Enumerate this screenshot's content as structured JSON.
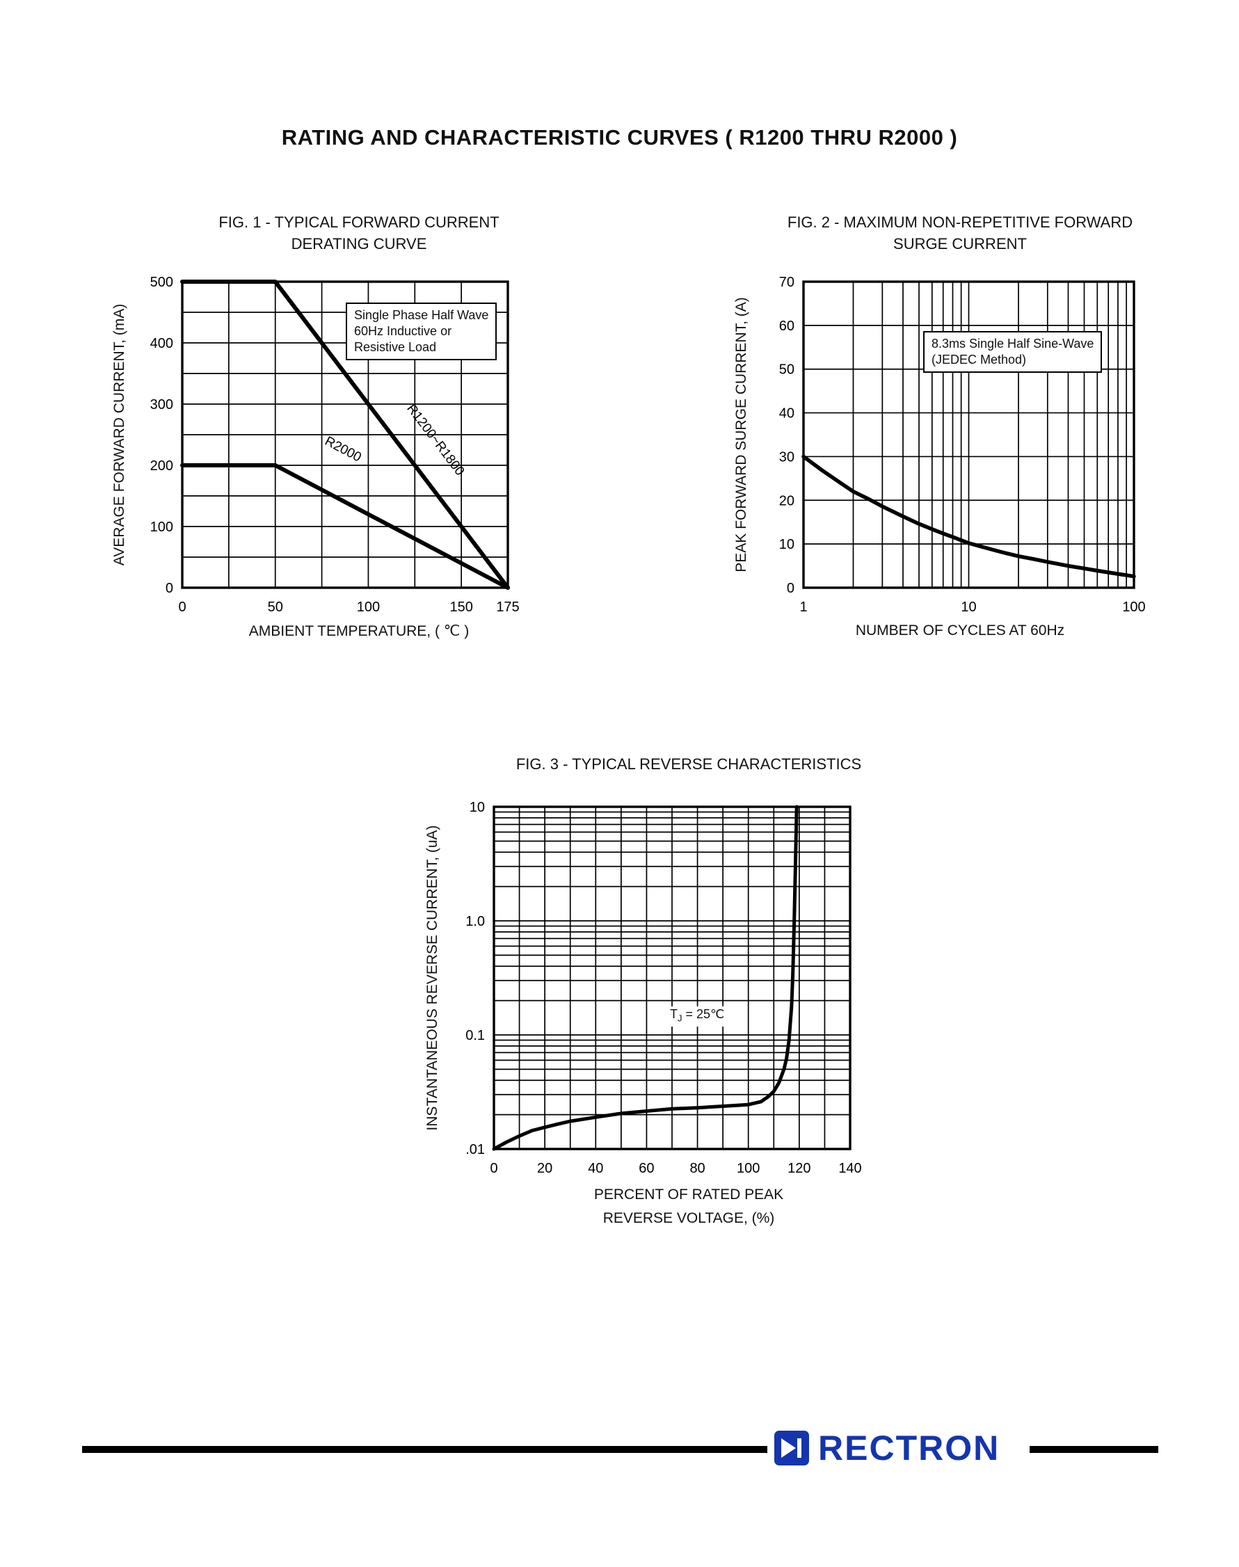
{
  "page": {
    "title": "RATING AND CHARACTERISTIC CURVES ( R1200 THRU R2000 )"
  },
  "footer": {
    "brand": "RECTRON",
    "brand_color": "#1535ad"
  },
  "chart_data": [
    {
      "id": "fig1",
      "type": "line",
      "title": "FIG. 1 - TYPICAL FORWARD CURRENT",
      "subtitle": "DERATING CURVE",
      "xlabel": "AMBIENT TEMPERATURE, ( ℃ )",
      "ylabel": "AVERAGE FORWARD CURRENT, (mA)",
      "xscale": "linear",
      "yscale": "linear",
      "xlim": [
        0,
        175
      ],
      "ylim": [
        0,
        500
      ],
      "xgrid_step": 25,
      "ygrid_step": 50,
      "xticks": [
        {
          "v": 0,
          "l": "0"
        },
        {
          "v": 50,
          "l": "50"
        },
        {
          "v": 100,
          "l": "100"
        },
        {
          "v": 150,
          "l": "150"
        },
        {
          "v": 175,
          "l": "175"
        }
      ],
      "yticks": [
        {
          "v": 0,
          "l": "0"
        },
        {
          "v": 100,
          "l": "100"
        },
        {
          "v": 200,
          "l": "200"
        },
        {
          "v": 300,
          "l": "300"
        },
        {
          "v": 400,
          "l": "400"
        },
        {
          "v": 500,
          "l": "500"
        }
      ],
      "annotation": {
        "boxed": true,
        "lines": [
          "Single Phase Half Wave",
          "60Hz Inductive or",
          "Resistive Load"
        ]
      },
      "series": [
        {
          "name": "R1200~R1800",
          "points": [
            [
              0,
              500
            ],
            [
              50,
              500
            ],
            [
              175,
              0
            ]
          ]
        },
        {
          "name": "R2000",
          "points": [
            [
              0,
              200
            ],
            [
              50,
              200
            ],
            [
              175,
              0
            ]
          ]
        }
      ]
    },
    {
      "id": "fig2",
      "type": "line",
      "title": "FIG. 2 - MAXIMUM NON-REPETITIVE FORWARD",
      "subtitle": "SURGE CURRENT",
      "xlabel": "NUMBER OF CYCLES AT 60Hz",
      "ylabel": "PEAK FORWARD SURGE CURRENT, (A)",
      "xscale": "log",
      "yscale": "linear",
      "xlim": [
        1,
        100
      ],
      "ylim": [
        0,
        70
      ],
      "ygrid_step": 10,
      "xticks": [
        {
          "v": 1,
          "l": "1"
        },
        {
          "v": 10,
          "l": "10"
        },
        {
          "v": 100,
          "l": "100"
        }
      ],
      "yticks": [
        {
          "v": 0,
          "l": "0"
        },
        {
          "v": 10,
          "l": "10"
        },
        {
          "v": 20,
          "l": "20"
        },
        {
          "v": 30,
          "l": "30"
        },
        {
          "v": 40,
          "l": "40"
        },
        {
          "v": 50,
          "l": "50"
        },
        {
          "v": 60,
          "l": "60"
        },
        {
          "v": 70,
          "l": "70"
        }
      ],
      "annotation": {
        "boxed": true,
        "lines": [
          "8.3ms Single Half Sine-Wave",
          "(JEDEC Method)"
        ]
      },
      "series": [
        {
          "name": "surge current",
          "points": [
            [
              1,
              30
            ],
            [
              1.3,
              26.8
            ],
            [
              1.7,
              23.8
            ],
            [
              2,
              22
            ],
            [
              2.5,
              20.2
            ],
            [
              3,
              18.6
            ],
            [
              4,
              16.3
            ],
            [
              5,
              14.6
            ],
            [
              6,
              13.4
            ],
            [
              7,
              12.4
            ],
            [
              8,
              11.6
            ],
            [
              10,
              10.2
            ],
            [
              13,
              9.0
            ],
            [
              16,
              8.1
            ],
            [
              20,
              7.2
            ],
            [
              25,
              6.5
            ],
            [
              30,
              5.9
            ],
            [
              40,
              5.0
            ],
            [
              50,
              4.4
            ],
            [
              60,
              3.9
            ],
            [
              70,
              3.5
            ],
            [
              85,
              3.0
            ],
            [
              100,
              2.6
            ]
          ]
        }
      ]
    },
    {
      "id": "fig3",
      "type": "line",
      "title": "FIG. 3 - TYPICAL REVERSE CHARACTERISTICS",
      "xlabel_line1": "PERCENT OF RATED PEAK",
      "xlabel_line2": "REVERSE VOLTAGE, (%)",
      "ylabel": "INSTANTANEOUS REVERSE CURRENT, (uA)",
      "xscale": "linear",
      "yscale": "log",
      "xlim": [
        0,
        140
      ],
      "ylim": [
        0.01,
        10
      ],
      "xgrid_step": 10,
      "xticks": [
        {
          "v": 0,
          "l": "0"
        },
        {
          "v": 20,
          "l": "20"
        },
        {
          "v": 40,
          "l": "40"
        },
        {
          "v": 60,
          "l": "60"
        },
        {
          "v": 80,
          "l": "80"
        },
        {
          "v": 100,
          "l": "100"
        },
        {
          "v": 120,
          "l": "120"
        },
        {
          "v": 140,
          "l": "140"
        }
      ],
      "yticks": [
        {
          "v": 10,
          "l": "10"
        },
        {
          "v": 1,
          "l": "1.0"
        },
        {
          "v": 0.1,
          "l": "0.1"
        },
        {
          "v": 0.01,
          "l": ".01"
        }
      ],
      "annotation": {
        "boxed": false,
        "pre": "T",
        "sub": "J",
        "post": " = 25℃"
      },
      "series": [
        {
          "name": "reverse leakage",
          "points": [
            [
              0,
              0.01
            ],
            [
              5,
              0.0115
            ],
            [
              10,
              0.013
            ],
            [
              15,
              0.0145
            ],
            [
              20,
              0.0155
            ],
            [
              25,
              0.0165
            ],
            [
              30,
              0.0175
            ],
            [
              40,
              0.019
            ],
            [
              50,
              0.0205
            ],
            [
              60,
              0.0215
            ],
            [
              70,
              0.0225
            ],
            [
              80,
              0.023
            ],
            [
              90,
              0.0237
            ],
            [
              100,
              0.0245
            ],
            [
              105,
              0.026
            ],
            [
              108,
              0.029
            ],
            [
              110,
              0.032
            ],
            [
              112,
              0.038
            ],
            [
              114,
              0.05
            ],
            [
              115,
              0.062
            ],
            [
              116,
              0.09
            ],
            [
              117,
              0.18
            ],
            [
              117.5,
              0.35
            ],
            [
              118,
              0.9
            ],
            [
              118.5,
              3
            ],
            [
              119,
              10
            ]
          ]
        }
      ]
    }
  ]
}
